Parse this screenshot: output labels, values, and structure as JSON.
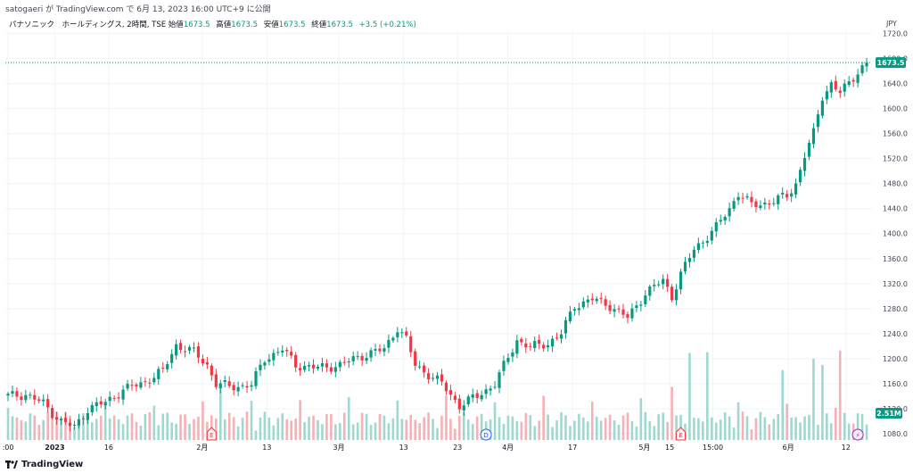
{
  "attribution": "satogaeri が TradingView.com で 6月 13, 2023 16:00 UTC+9 に公開",
  "legend": {
    "symbol": "パナソニック　ホールディングス, 2時間, TSE",
    "open_label": "始値",
    "open": "1673.5",
    "high_label": "高値",
    "high": "1673.5",
    "low_label": "安値",
    "low": "1673.5",
    "close_label": "終値",
    "close": "1673.5",
    "change": "+3.5 (+0.21%)"
  },
  "footer": {
    "logo_icon": "tradingview-logo-icon",
    "brand": "TradingView"
  },
  "colors": {
    "up": "#089981",
    "down": "#f23645",
    "grid": "#f0f3fa",
    "vol_up": "#9fd8cf",
    "vol_down": "#f6b1b6"
  },
  "chart_data": {
    "type": "candlestick",
    "currency": "JPY",
    "ylim": [
      1070,
      1725
    ],
    "y_ticks": [
      "1720.0",
      "1680.0",
      "1640.0",
      "1600.0",
      "1560.0",
      "1520.0",
      "1480.0",
      "1440.0",
      "1400.0",
      "1360.0",
      "1320.0",
      "1280.0",
      "1240.0",
      "1200.0",
      "1160.0",
      "1120.0",
      "1080.0"
    ],
    "x_ticks": [
      ":00",
      "2023",
      "16",
      "2月",
      "13",
      "3月",
      "13",
      "23",
      "4月",
      "17",
      "5月",
      "15",
      "15:00",
      "6月",
      "12"
    ],
    "last_price": "1673.5",
    "last_volume": "2.51M",
    "event_markers": [
      {
        "label": "E",
        "type": "earnings",
        "x_index": 46
      },
      {
        "label": "D",
        "type": "dividend",
        "x_index": 108
      },
      {
        "label": "E",
        "type": "earnings",
        "x_index": 152
      },
      {
        "label": "⚡",
        "type": "split",
        "x_index": 192
      }
    ],
    "close_anchors": [
      [
        0,
        1140
      ],
      [
        4,
        1143
      ],
      [
        8,
        1128
      ],
      [
        12,
        1100
      ],
      [
        15,
        1090
      ],
      [
        18,
        1120
      ],
      [
        22,
        1130
      ],
      [
        26,
        1150
      ],
      [
        30,
        1160
      ],
      [
        35,
        1180
      ],
      [
        38,
        1222
      ],
      [
        42,
        1210
      ],
      [
        45,
        1190
      ],
      [
        47,
        1160
      ],
      [
        50,
        1155
      ],
      [
        55,
        1158
      ],
      [
        58,
        1200
      ],
      [
        62,
        1215
      ],
      [
        65,
        1190
      ],
      [
        70,
        1185
      ],
      [
        75,
        1190
      ],
      [
        80,
        1205
      ],
      [
        85,
        1215
      ],
      [
        88,
        1250
      ],
      [
        90,
        1230
      ],
      [
        92,
        1190
      ],
      [
        95,
        1175
      ],
      [
        98,
        1160
      ],
      [
        102,
        1125
      ],
      [
        106,
        1140
      ],
      [
        110,
        1160
      ],
      [
        115,
        1230
      ],
      [
        118,
        1218
      ],
      [
        122,
        1225
      ],
      [
        125,
        1240
      ],
      [
        128,
        1285
      ],
      [
        132,
        1295
      ],
      [
        136,
        1285
      ],
      [
        140,
        1265
      ],
      [
        144,
        1305
      ],
      [
        148,
        1325
      ],
      [
        150,
        1300
      ],
      [
        152,
        1335
      ],
      [
        155,
        1375
      ],
      [
        160,
        1410
      ],
      [
        163,
        1440
      ],
      [
        165,
        1465
      ],
      [
        168,
        1445
      ],
      [
        172,
        1450
      ],
      [
        176,
        1460
      ],
      [
        178,
        1480
      ],
      [
        180,
        1525
      ],
      [
        182,
        1560
      ],
      [
        184,
        1620
      ],
      [
        186,
        1640
      ],
      [
        188,
        1625
      ],
      [
        190,
        1640
      ],
      [
        192,
        1660
      ],
      [
        194,
        1673.5
      ]
    ]
  }
}
